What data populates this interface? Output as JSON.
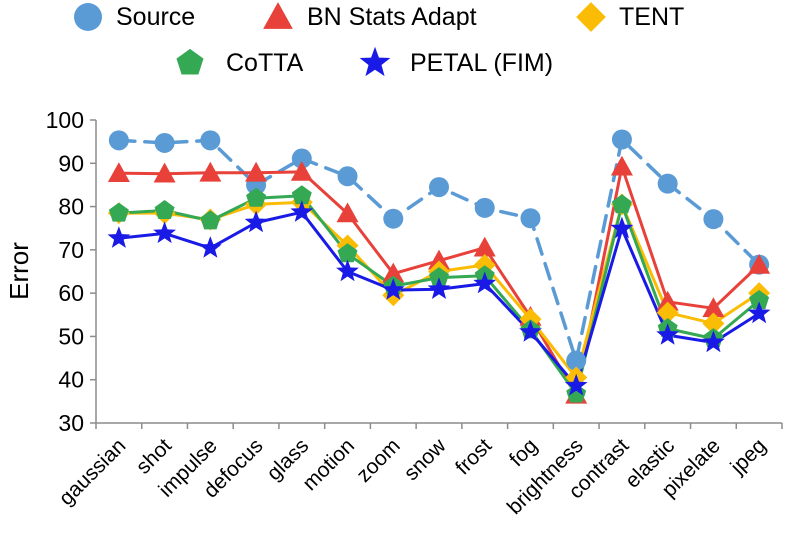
{
  "chart_data": {
    "type": "line",
    "title": "",
    "xlabel": "",
    "ylabel": "Error",
    "ylim": [
      30,
      100
    ],
    "yticks": [
      30,
      40,
      50,
      60,
      70,
      80,
      90,
      100
    ],
    "grid": false,
    "legend_position": "top",
    "categories": [
      "gaussian",
      "shot",
      "impulse",
      "defocus",
      "glass",
      "motion",
      "zoom",
      "snow",
      "frost",
      "fog",
      "brightness",
      "contrast",
      "elastic",
      "pixelate",
      "jpeg"
    ],
    "series": [
      {
        "name": "Source",
        "color": "#5b9bd5",
        "marker": "circle",
        "dashed": true,
        "values": [
          95.3,
          94.7,
          95.3,
          85,
          91.1,
          87,
          77.2,
          84.5,
          79.7,
          77.3,
          44.4,
          95.5,
          85.3,
          77.1,
          66.6
        ]
      },
      {
        "name": "BN Stats Adapt",
        "color": "#e8413a",
        "marker": "triangle",
        "dashed": false,
        "values": [
          87.7,
          87.6,
          87.8,
          87.8,
          88,
          78.4,
          64.5,
          67.5,
          70.5,
          54.5,
          36.5,
          89.2,
          58,
          56.5,
          66.5
        ]
      },
      {
        "name": "TENT",
        "color": "#fbbc05",
        "marker": "diamond",
        "dashed": false,
        "values": [
          78.5,
          78.5,
          77,
          80.5,
          81,
          71,
          59.5,
          65,
          66.5,
          54,
          40.5,
          80.5,
          55.5,
          53,
          60
        ]
      },
      {
        "name": "CoTTA",
        "color": "#34a853",
        "marker": "pentagon",
        "dashed": false,
        "values": [
          78.5,
          79.1,
          76.7,
          81.9,
          82.5,
          69.1,
          61.6,
          63.6,
          64,
          51.5,
          36.7,
          80.4,
          51.8,
          49.5,
          58.3
        ]
      },
      {
        "name": "PETAL (FIM)",
        "color": "#1a1ae6",
        "marker": "star",
        "dashed": false,
        "values": [
          72.7,
          73.8,
          70.4,
          76.3,
          78.7,
          65,
          60.7,
          60.9,
          62.2,
          51,
          38.6,
          74.9,
          50.3,
          48.6,
          55.3
        ]
      }
    ]
  }
}
